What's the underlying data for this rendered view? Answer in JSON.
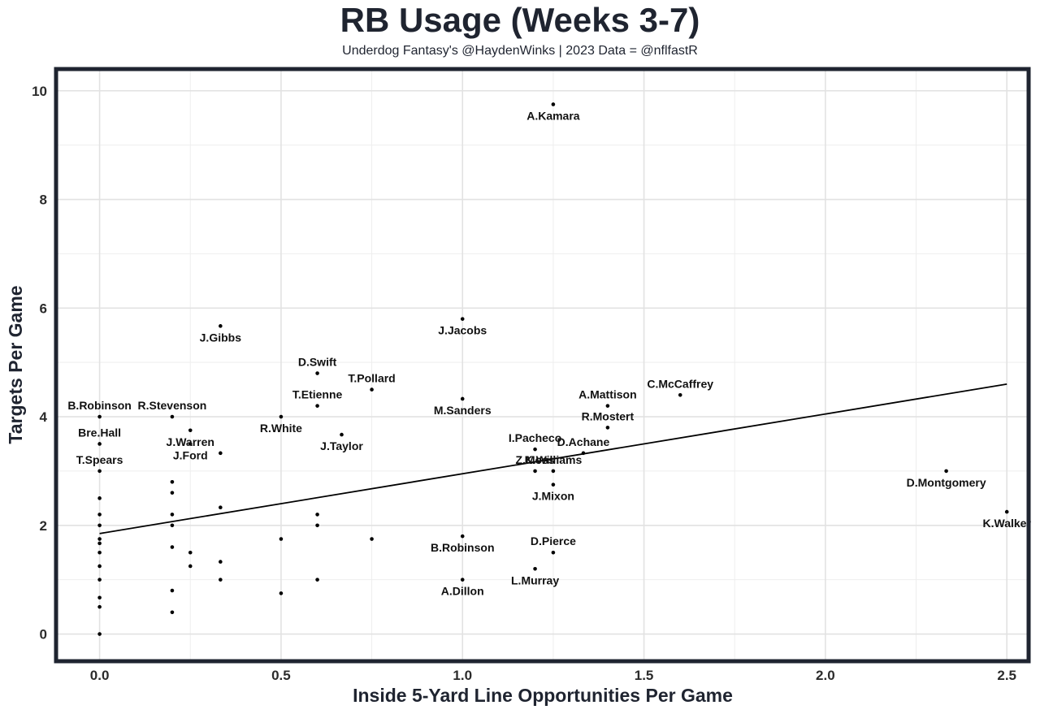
{
  "chart_data": {
    "type": "scatter",
    "title": "RB Usage (Weeks 3-7)",
    "subtitle": "Underdog Fantasy's @HaydenWinks | 2023 Data = @nflfastR",
    "xlabel": "Inside 5-Yard Line Opportunities Per Game",
    "ylabel": "Targets Per Game",
    "xlim": [
      -0.12,
      2.56
    ],
    "ylim": [
      -0.5,
      10.4
    ],
    "x_ticks": [
      0.0,
      0.5,
      1.0,
      1.5,
      2.0,
      2.5
    ],
    "x_tick_labels": [
      "0.0",
      "0.5",
      "1.0",
      "1.5",
      "2.0",
      "2.5"
    ],
    "y_ticks": [
      0,
      2,
      4,
      6,
      8,
      10
    ],
    "y_tick_labels": [
      "0",
      "2",
      "4",
      "6",
      "8",
      "10"
    ],
    "grid": true,
    "trendline": {
      "x": [
        0.0,
        2.5
      ],
      "y": [
        1.85,
        4.6
      ]
    },
    "points": [
      {
        "x": 1.25,
        "y": 9.75,
        "label": "A.Kamara",
        "label_pos": "below"
      },
      {
        "x": 1.0,
        "y": 5.8,
        "label": "J.Jacobs",
        "label_pos": "below"
      },
      {
        "x": 0.333,
        "y": 5.67,
        "label": "J.Gibbs",
        "label_pos": "below"
      },
      {
        "x": 0.6,
        "y": 4.8,
        "label": "D.Swift",
        "label_pos": "above"
      },
      {
        "x": 0.75,
        "y": 4.5,
        "label": "T.Pollard",
        "label_pos": "above"
      },
      {
        "x": 0.6,
        "y": 4.2,
        "label": "T.Etienne",
        "label_pos": "above"
      },
      {
        "x": 1.0,
        "y": 4.33,
        "label": "M.Sanders",
        "label_pos": "below"
      },
      {
        "x": 1.6,
        "y": 4.4,
        "label": "C.McCaffrey",
        "label_pos": "above"
      },
      {
        "x": 1.4,
        "y": 4.2,
        "label": "A.Mattison",
        "label_pos": "above"
      },
      {
        "x": 1.4,
        "y": 3.8,
        "label": "R.Mostert",
        "label_pos": "above"
      },
      {
        "x": 0.0,
        "y": 4.0,
        "label": "B.Robinson",
        "label_pos": "above"
      },
      {
        "x": 0.2,
        "y": 4.0,
        "label": "R.Stevenson",
        "label_pos": "above"
      },
      {
        "x": 0.5,
        "y": 4.0,
        "label": "R.White",
        "label_pos": "below"
      },
      {
        "x": 0.0,
        "y": 3.5,
        "label": "Bre.Hall",
        "label_pos": "above"
      },
      {
        "x": 0.25,
        "y": 3.75,
        "label": "J.Warren",
        "label_pos": "below"
      },
      {
        "x": 0.25,
        "y": 3.5,
        "label": "J.Ford",
        "label_pos": "below"
      },
      {
        "x": 0.667,
        "y": 3.67,
        "label": "J.Taylor",
        "label_pos": "below"
      },
      {
        "x": 0.0,
        "y": 3.0,
        "label": "T.Spears",
        "label_pos": "above"
      },
      {
        "x": 1.2,
        "y": 3.4,
        "label": "I.Pacheco",
        "label_pos": "above"
      },
      {
        "x": 1.333,
        "y": 3.33,
        "label": "D.Achane",
        "label_pos": "above"
      },
      {
        "x": 1.2,
        "y": 3.0,
        "label": "Z.Moss",
        "label_pos": "above"
      },
      {
        "x": 1.25,
        "y": 3.0,
        "label": "K.Williams",
        "label_pos": "above"
      },
      {
        "x": 1.25,
        "y": 2.75,
        "label": "J.Mixon",
        "label_pos": "below"
      },
      {
        "x": 2.333,
        "y": 3.0,
        "label": "D.Montgomery",
        "label_pos": "below"
      },
      {
        "x": 2.5,
        "y": 2.25,
        "label": "K.Walker",
        "label_pos": "below"
      },
      {
        "x": 1.0,
        "y": 1.8,
        "label": "B.Robinson",
        "label_pos": "below"
      },
      {
        "x": 1.25,
        "y": 1.5,
        "label": "D.Pierce",
        "label_pos": "above"
      },
      {
        "x": 1.2,
        "y": 1.2,
        "label": "L.Murray",
        "label_pos": "below"
      },
      {
        "x": 1.0,
        "y": 1.0,
        "label": "A.Dillon",
        "label_pos": "below"
      },
      {
        "x": 0.333,
        "y": 3.33,
        "label": "",
        "label_pos": "none"
      },
      {
        "x": 0.0,
        "y": 2.5,
        "label": "",
        "label_pos": "none"
      },
      {
        "x": 0.0,
        "y": 2.2,
        "label": "",
        "label_pos": "none"
      },
      {
        "x": 0.0,
        "y": 2.0,
        "label": "",
        "label_pos": "none"
      },
      {
        "x": 0.0,
        "y": 1.75,
        "label": "",
        "label_pos": "none"
      },
      {
        "x": 0.0,
        "y": 1.67,
        "label": "",
        "label_pos": "none"
      },
      {
        "x": 0.0,
        "y": 1.5,
        "label": "",
        "label_pos": "none"
      },
      {
        "x": 0.0,
        "y": 1.25,
        "label": "",
        "label_pos": "none"
      },
      {
        "x": 0.0,
        "y": 1.0,
        "label": "",
        "label_pos": "none"
      },
      {
        "x": 0.0,
        "y": 0.67,
        "label": "",
        "label_pos": "none"
      },
      {
        "x": 0.0,
        "y": 0.5,
        "label": "",
        "label_pos": "none"
      },
      {
        "x": 0.0,
        "y": 0.0,
        "label": "",
        "label_pos": "none"
      },
      {
        "x": 0.2,
        "y": 2.8,
        "label": "",
        "label_pos": "none"
      },
      {
        "x": 0.2,
        "y": 2.6,
        "label": "",
        "label_pos": "none"
      },
      {
        "x": 0.2,
        "y": 2.2,
        "label": "",
        "label_pos": "none"
      },
      {
        "x": 0.2,
        "y": 2.0,
        "label": "",
        "label_pos": "none"
      },
      {
        "x": 0.2,
        "y": 1.6,
        "label": "",
        "label_pos": "none"
      },
      {
        "x": 0.2,
        "y": 0.8,
        "label": "",
        "label_pos": "none"
      },
      {
        "x": 0.2,
        "y": 0.4,
        "label": "",
        "label_pos": "none"
      },
      {
        "x": 0.25,
        "y": 1.5,
        "label": "",
        "label_pos": "none"
      },
      {
        "x": 0.25,
        "y": 1.25,
        "label": "",
        "label_pos": "none"
      },
      {
        "x": 0.333,
        "y": 2.33,
        "label": "",
        "label_pos": "none"
      },
      {
        "x": 0.333,
        "y": 1.33,
        "label": "",
        "label_pos": "none"
      },
      {
        "x": 0.333,
        "y": 1.0,
        "label": "",
        "label_pos": "none"
      },
      {
        "x": 0.5,
        "y": 1.75,
        "label": "",
        "label_pos": "none"
      },
      {
        "x": 0.5,
        "y": 0.75,
        "label": "",
        "label_pos": "none"
      },
      {
        "x": 0.6,
        "y": 2.2,
        "label": "",
        "label_pos": "none"
      },
      {
        "x": 0.6,
        "y": 2.0,
        "label": "",
        "label_pos": "none"
      },
      {
        "x": 0.6,
        "y": 1.0,
        "label": "",
        "label_pos": "none"
      },
      {
        "x": 0.75,
        "y": 1.75,
        "label": "",
        "label_pos": "none"
      }
    ]
  }
}
